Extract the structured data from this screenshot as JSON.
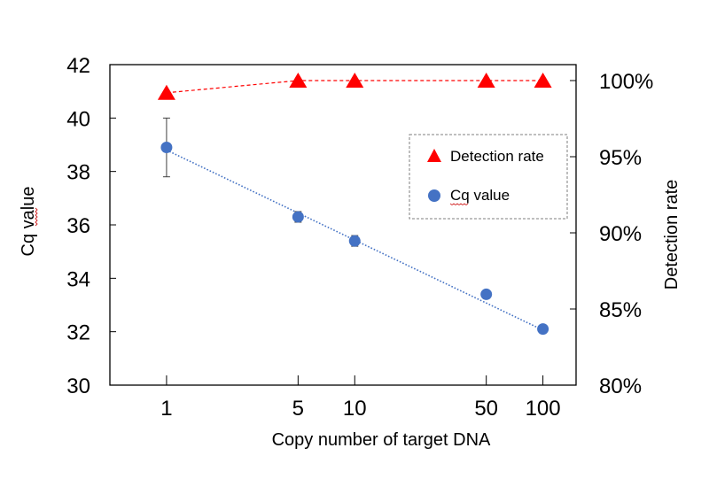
{
  "chart_data": {
    "type": "line",
    "title": "",
    "xlabel": "Copy number of target DNA",
    "ylabel": "Cq value",
    "y2label": "Detection rate",
    "xscale": "log",
    "xlim": [
      0.5,
      150
    ],
    "ylim": [
      30,
      42
    ],
    "y2lim": [
      0.8,
      1.0
    ],
    "x": [
      1,
      5,
      10,
      50,
      100
    ],
    "xtick_labels": [
      "1",
      "5",
      "10",
      "50",
      "100"
    ],
    "ytick_labels": [
      "30",
      "32",
      "34",
      "36",
      "38",
      "40",
      "42"
    ],
    "yticks": [
      30,
      32,
      34,
      36,
      38,
      40,
      42
    ],
    "y2ticks": [
      0.8,
      0.85,
      0.9,
      0.95,
      1.0
    ],
    "y2tick_labels": [
      "80%",
      "85%",
      "90%",
      "95%",
      "100%"
    ],
    "grid": false,
    "legend_position": "upper-right-inside",
    "series": [
      {
        "name": "Detection rate",
        "axis": "right",
        "marker": "triangle",
        "line_style": "dashed",
        "color": "#FF0000",
        "values": [
          0.992,
          1.0,
          1.0,
          1.0,
          1.0
        ]
      },
      {
        "name": "Cq value",
        "axis": "left",
        "marker": "circle",
        "line_style": "none",
        "color": "#4472C4",
        "values": [
          38.9,
          36.3,
          35.4,
          33.4,
          32.1
        ],
        "error": [
          1.1,
          0.2,
          0.2,
          0.1,
          0.1
        ]
      }
    ],
    "trendline": {
      "series": "Cq value",
      "type": "log-linear",
      "line_style": "dotted",
      "color": "#4472C4",
      "x_range": [
        1,
        100
      ],
      "y_start": 38.8,
      "y_end": 32.06
    }
  }
}
